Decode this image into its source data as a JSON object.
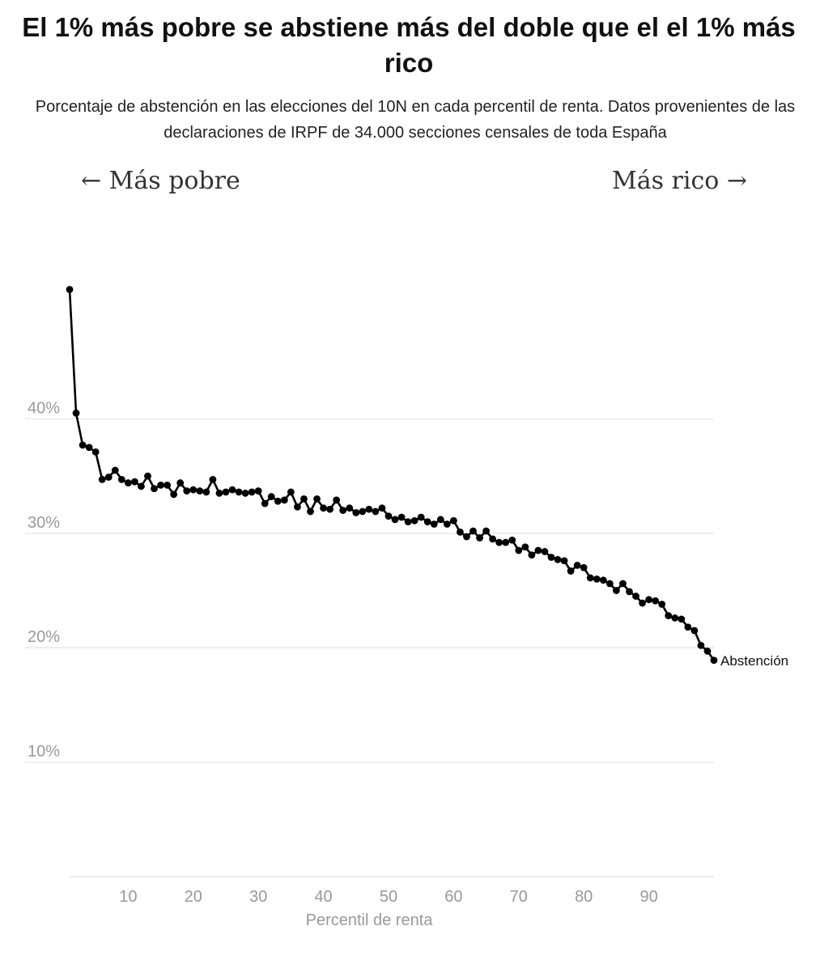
{
  "header": {
    "title": "El 1% más pobre se abstiene más del doble que el el 1% más rico",
    "subtitle": "Porcentaje de abstención en las elecciones del 10N en cada percentil de renta. Datos provenientes de las declaraciones de IRPF de 34.000 secciones censales de toda España"
  },
  "annotations": {
    "poorer": "← Más pobre",
    "richer": "Más rico →"
  },
  "colors": {
    "line": "#000000",
    "grid": "#e6e6e6",
    "tick": "#999999"
  },
  "chart_data": {
    "type": "line",
    "xlabel": "Percentil de renta",
    "ylabel": "",
    "xlim": [
      1,
      100
    ],
    "ylim": [
      0,
      50
    ],
    "x_ticks": [
      10,
      20,
      30,
      40,
      50,
      60,
      70,
      80,
      90
    ],
    "y_ticks": [
      10,
      20,
      30,
      40
    ],
    "y_tick_format": "{v}%",
    "grid": "horizontal",
    "series": [
      {
        "name": "Abstención",
        "x": [
          1,
          2,
          3,
          4,
          5,
          6,
          7,
          8,
          9,
          10,
          11,
          12,
          13,
          14,
          15,
          16,
          17,
          18,
          19,
          20,
          21,
          22,
          23,
          24,
          25,
          26,
          27,
          28,
          29,
          30,
          31,
          32,
          33,
          34,
          35,
          36,
          37,
          38,
          39,
          40,
          41,
          42,
          43,
          44,
          45,
          46,
          47,
          48,
          49,
          50,
          51,
          52,
          53,
          54,
          55,
          56,
          57,
          58,
          59,
          60,
          61,
          62,
          63,
          64,
          65,
          66,
          67,
          68,
          69,
          70,
          71,
          72,
          73,
          74,
          75,
          76,
          77,
          78,
          79,
          80,
          81,
          82,
          83,
          84,
          85,
          86,
          87,
          88,
          89,
          90,
          91,
          92,
          93,
          94,
          95,
          96,
          97,
          98,
          99,
          100
        ],
        "values": [
          51.3,
          40.5,
          37.7,
          37.5,
          37.1,
          34.7,
          34.9,
          35.5,
          34.7,
          34.4,
          34.5,
          34.1,
          35.0,
          33.9,
          34.2,
          34.2,
          33.4,
          34.4,
          33.7,
          33.8,
          33.7,
          33.6,
          34.7,
          33.5,
          33.6,
          33.8,
          33.6,
          33.5,
          33.6,
          33.7,
          32.6,
          33.2,
          32.8,
          32.9,
          33.6,
          32.3,
          33.0,
          31.9,
          33.0,
          32.2,
          32.1,
          32.9,
          32.0,
          32.2,
          31.8,
          31.9,
          32.1,
          31.9,
          32.2,
          31.5,
          31.2,
          31.4,
          31.0,
          31.1,
          31.4,
          31.0,
          30.8,
          31.2,
          30.8,
          31.1,
          30.1,
          29.7,
          30.2,
          29.6,
          30.2,
          29.5,
          29.2,
          29.2,
          29.4,
          28.5,
          28.8,
          28.1,
          28.5,
          28.4,
          27.9,
          27.7,
          27.6,
          26.7,
          27.2,
          27.0,
          26.1,
          26.0,
          25.9,
          25.6,
          25.0,
          25.6,
          24.9,
          24.5,
          23.9,
          24.2,
          24.1,
          23.8,
          22.8,
          22.6,
          22.5,
          21.8,
          21.5,
          20.2,
          19.7,
          18.9
        ]
      }
    ]
  }
}
